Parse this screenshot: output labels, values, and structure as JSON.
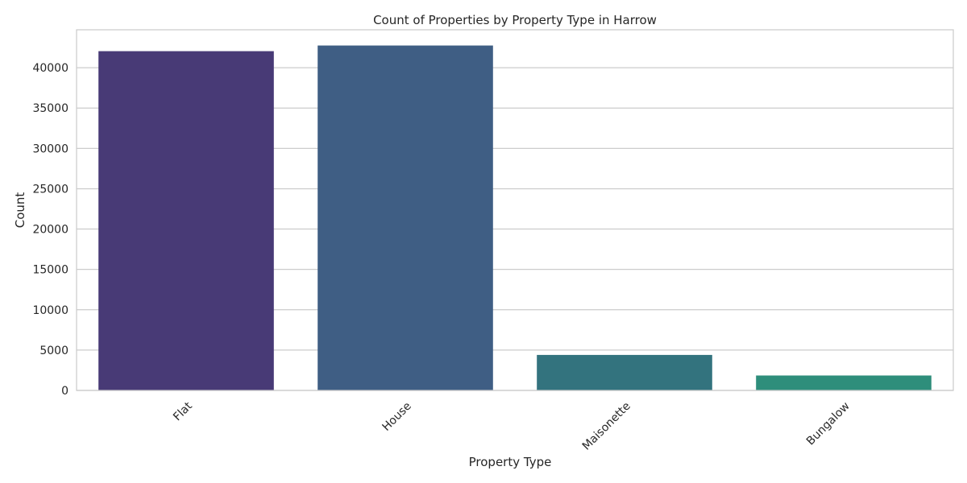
{
  "chart_data": {
    "type": "bar",
    "title": "Count of Properties by Property Type in Harrow",
    "xlabel": "Property Type",
    "ylabel": "Count",
    "categories": [
      "Flat",
      "House",
      "Maisonette",
      "Bungalow"
    ],
    "values": [
      42050,
      42750,
      4400,
      1850
    ],
    "colors": [
      "#483a76",
      "#3f5e84",
      "#33737e",
      "#2e8e7b"
    ],
    "ylim": [
      0,
      44700
    ],
    "yticks": [
      0,
      5000,
      10000,
      15000,
      20000,
      25000,
      30000,
      35000,
      40000
    ],
    "grid": true,
    "grid_axis": "y",
    "xtick_rotation": 45,
    "legend": false
  }
}
